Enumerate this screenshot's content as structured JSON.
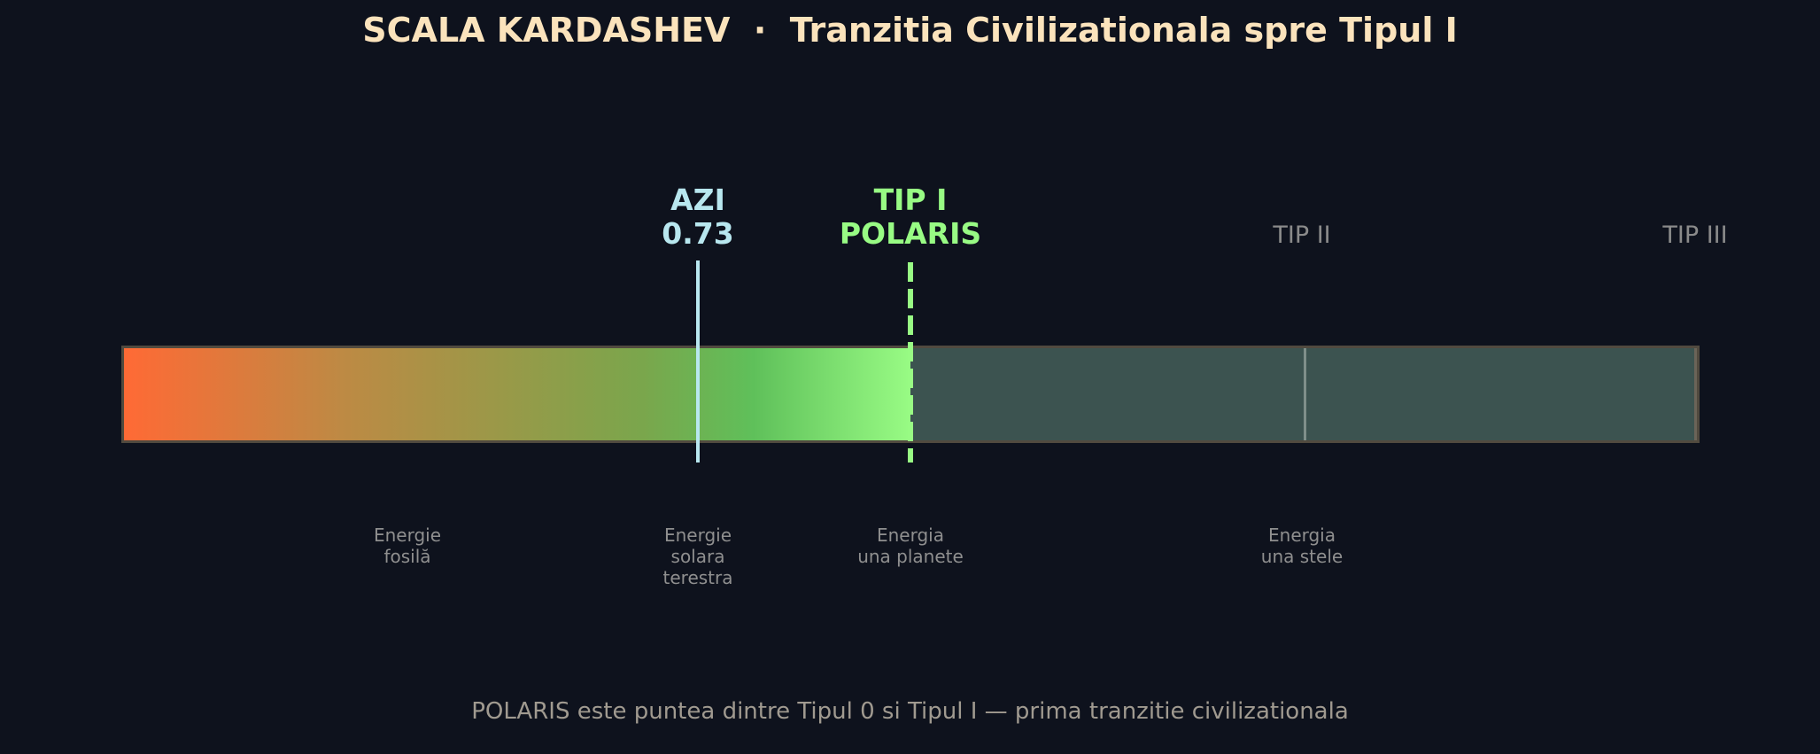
{
  "title": "SCALA KARDASHEV  ·  Tranzitia Civilizationala spre Tipul I",
  "colors": {
    "background": "#0e121d",
    "title": "#fbe3bc",
    "azi": "#b8e7ef",
    "polaris": "#98fb84",
    "dim_label": "#8a8a8a",
    "gradient_start": "#ff6a35",
    "gradient_end": "#98fb84",
    "bar_rest": "#3c5350"
  },
  "scale": {
    "progress_value": 0.73,
    "target_value": 1.0,
    "fill_note": "bar filled with gradient up to Tipul I, muted beyond"
  },
  "markers": {
    "azi": {
      "line1": "AZI",
      "line2": "0.73"
    },
    "tip1": {
      "line1": "TIP I",
      "line2": "POLARIS"
    },
    "tip2": {
      "label": "TIP II"
    },
    "tip3": {
      "label": "TIP III"
    }
  },
  "descriptions": {
    "fossil": [
      "Energie",
      "fosilă"
    ],
    "solar": [
      "Energie",
      "solara",
      "terestra"
    ],
    "planet": [
      "Energia",
      "una planete"
    ],
    "star": [
      "Energia",
      "una stele"
    ]
  },
  "footer": "POLARIS este puntea dintre Tipul 0 si Tipul I — prima tranzitie civilizationala"
}
